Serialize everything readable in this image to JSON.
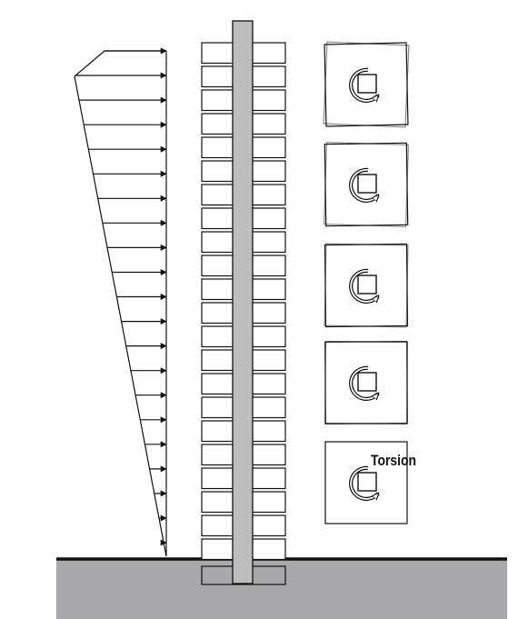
{
  "diagram": {
    "label": "Torsion",
    "colors": {
      "ground": "#a9a9ab",
      "core": "#bdbdbd",
      "stroke": "#111111",
      "plan_offset": "#8a8a8a"
    },
    "floor_count": 22,
    "load_arrow_count": 21,
    "plan_count": 5,
    "icons": [
      "rotation-arrow-icon",
      "square-icon"
    ]
  }
}
